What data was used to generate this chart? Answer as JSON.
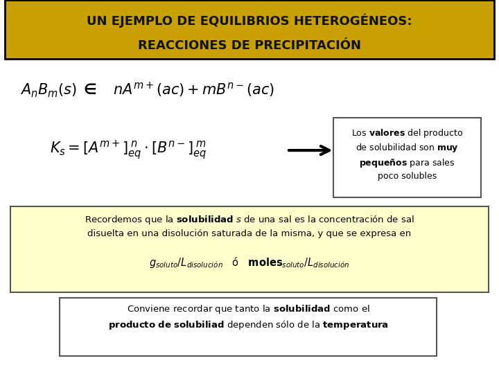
{
  "title_line1": "UN EJEMPLO DE EQUILIBRIOS HETEROGÉNEOS:",
  "title_line2": "REACCIONES DE PRECIPITACIÓN",
  "title_bg_color": "#C8A000",
  "title_border_color": "#000000",
  "title_text_color": "#111100",
  "bg_color": "#ffffff",
  "yellow_box_color": "#ffffcc",
  "yellow_box_border": "#555555",
  "white_box_border": "#555555"
}
